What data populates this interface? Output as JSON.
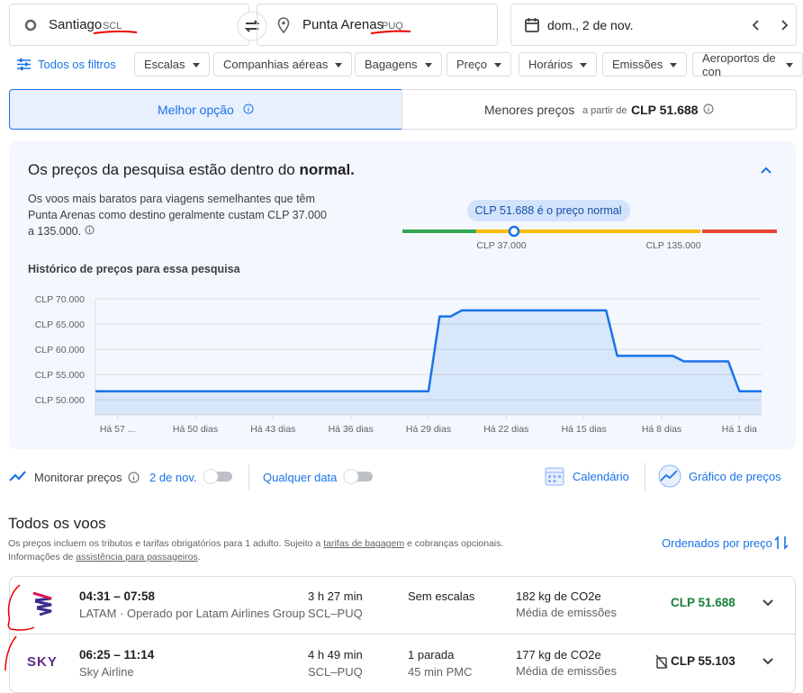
{
  "search": {
    "origin": "Santiago",
    "origin_code": "SCL",
    "destination": "Punta Arenas",
    "destination_code": "PUQ",
    "date": "dom., 2 de nov."
  },
  "filters": {
    "all": "Todos os filtros",
    "items": [
      "Escalas",
      "Companhias aéreas",
      "Bagagens",
      "Preço",
      "Horários",
      "Emissões",
      "Aeroportos de con"
    ]
  },
  "tabs": {
    "best": "Melhor opção",
    "cheapest": "Menores preços",
    "from": "a partir de",
    "cheapest_price": "CLP 51.688"
  },
  "insight": {
    "title_prefix": "Os preços da pesquisa estão dentro do",
    "title_emph": "normal.",
    "description": "Os voos mais baratos para viagens semelhantes que têm Punta Arenas como destino geralmente custam CLP 37.000 a 135.000.",
    "badge": "CLP 51.688 é o preço normal",
    "low": "CLP 37.000",
    "high": "CLP 135.000"
  },
  "chart_data": {
    "type": "line",
    "title": "Histórico de preços para essa pesquisa",
    "color": "#1a73e8",
    "x": [
      -59,
      -29,
      -28,
      -27,
      -26,
      -13,
      -12,
      -7,
      -6,
      -2,
      -1,
      1
    ],
    "values": [
      51688,
      51688,
      66500,
      66500,
      67700,
      67700,
      58700,
      58700,
      57600,
      57600,
      51688,
      51688
    ],
    "xlim": [
      -59,
      1
    ],
    "ylim": [
      47000,
      70000
    ],
    "grid": true,
    "xticks": [
      {
        "value": -57,
        "label": "Há 57 ..."
      },
      {
        "value": -50,
        "label": "Há 50 dias"
      },
      {
        "value": -43,
        "label": "Há 43 dias"
      },
      {
        "value": -36,
        "label": "Há 36 dias"
      },
      {
        "value": -29,
        "label": "Há 29 dias"
      },
      {
        "value": -22,
        "label": "Há 22 dias"
      },
      {
        "value": -15,
        "label": "Há 15 dias"
      },
      {
        "value": -8,
        "label": "Há 8 dias"
      },
      {
        "value": -1,
        "label": "Há 1 dia"
      }
    ],
    "yticks": [
      {
        "value": 50000,
        "label": "CLP 50.000"
      },
      {
        "value": 55000,
        "label": "CLP 55.000"
      },
      {
        "value": 60000,
        "label": "CLP 60.000"
      },
      {
        "value": 65000,
        "label": "CLP 65.000"
      },
      {
        "value": 70000,
        "label": "CLP 70.000"
      }
    ]
  },
  "monitor": {
    "label": "Monitorar preços",
    "date": "2 de nov.",
    "any_date": "Qualquer data",
    "calendar": "Calendário",
    "graph": "Gráfico de preços"
  },
  "results": {
    "title": "Todos os voos",
    "note_1": "Os preços incluem os tributos e tarifas obrigatórios para 1 adulto. Sujeito a",
    "link_1": "tarifas de bagagem",
    "note_2": "e cobranças opcionais.",
    "note_3": "Informações de",
    "link_2": "assistência para passageiros",
    "note_4": ".",
    "sort": "Ordenados por preço",
    "flights": [
      {
        "times": "04:31 – 07:58",
        "airline": "LATAM · Operado por Latam Airlines Group",
        "duration": "3 h 27 min",
        "route": "SCL–PUQ",
        "stops": "Sem escalas",
        "emissions": "182 kg de CO2e",
        "emissions_note": "Média de emissões",
        "price": "CLP 51.688"
      },
      {
        "logo": "SKY",
        "times": "06:25 – 11:14",
        "airline": "Sky Airline",
        "duration": "4 h 49 min",
        "route": "SCL–PUQ",
        "stops": "1 parada",
        "stop_detail": "45 min PMC",
        "emissions": "177 kg de CO2e",
        "emissions_note": "Média de emissões",
        "price": "CLP 55.103"
      }
    ]
  }
}
